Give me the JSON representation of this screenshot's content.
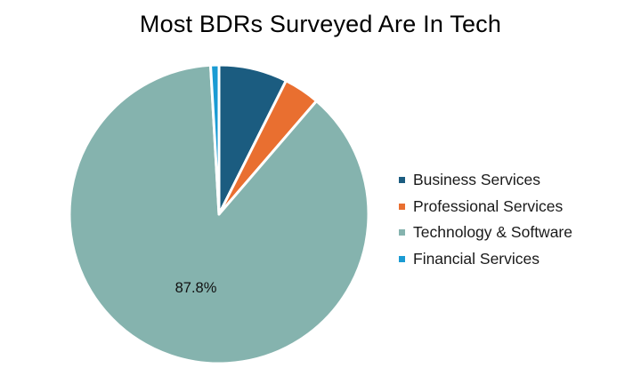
{
  "chart_data": {
    "type": "pie",
    "title": "Most BDRs Surveyed Are In Tech",
    "categories": [
      "Business Services",
      "Professional Services",
      "Technology & Software",
      "Financial Services"
    ],
    "values": [
      7.4,
      3.9,
      87.8,
      0.9
    ],
    "colors": [
      "#1b5c80",
      "#e96f30",
      "#85b3ae",
      "#1a9bd3"
    ],
    "data_labels": [
      "",
      "",
      "87.8%",
      ""
    ],
    "legend_position": "right",
    "start_angle": "top",
    "direction": "clockwise"
  }
}
